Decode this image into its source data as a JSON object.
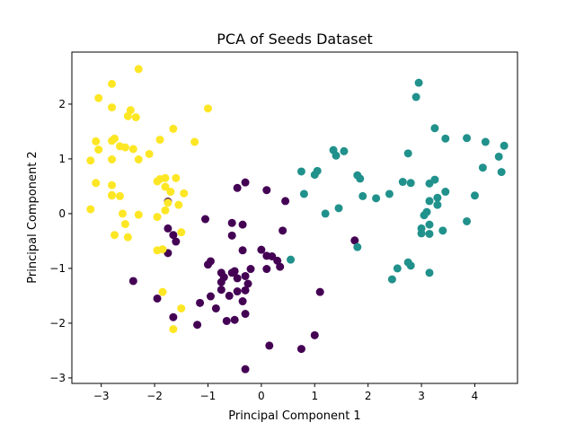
{
  "chart_data": {
    "type": "scatter",
    "title": "PCA of Seeds Dataset",
    "xlabel": "Principal Component 1",
    "ylabel": "Principal Component 2",
    "xlim": [
      -3.55,
      4.8
    ],
    "ylim": [
      -3.1,
      2.95
    ],
    "xticks": [
      -3,
      -2,
      -1,
      0,
      1,
      2,
      3,
      4
    ],
    "yticks": [
      -3,
      -2,
      -1,
      0,
      1,
      2
    ],
    "grid": false,
    "legend": "none",
    "colors": {
      "class_0": "#440154",
      "class_1": "#21918c",
      "class_2": "#fde725"
    },
    "series": [
      {
        "color_key": "class_0",
        "points": [
          [
            -1.75,
            0.22
          ],
          [
            -1.75,
            -0.27
          ],
          [
            -1.65,
            -0.39
          ],
          [
            -1.6,
            -0.51
          ],
          [
            -1.75,
            -0.72
          ],
          [
            -0.45,
            0.47
          ],
          [
            -0.3,
            0.57
          ],
          [
            0.1,
            0.43
          ],
          [
            0.45,
            0.23
          ],
          [
            -1.05,
            -0.1
          ],
          [
            -0.55,
            -0.17
          ],
          [
            -0.35,
            -0.2
          ],
          [
            -0.55,
            -0.4
          ],
          [
            -0.35,
            -0.67
          ],
          [
            0.0,
            -0.66
          ],
          [
            0.4,
            -0.31
          ],
          [
            0.1,
            -0.77
          ],
          [
            0.2,
            -0.78
          ],
          [
            -0.95,
            -0.87
          ],
          [
            -1.0,
            -0.93
          ],
          [
            -0.75,
            -1.08
          ],
          [
            -0.5,
            -1.05
          ],
          [
            -0.55,
            -1.08
          ],
          [
            -0.45,
            -1.18
          ],
          [
            -0.3,
            -1.14
          ],
          [
            -0.2,
            -1.01
          ],
          [
            0.1,
            -1.01
          ],
          [
            0.3,
            -0.86
          ],
          [
            0.35,
            -0.97
          ],
          [
            -0.7,
            -1.16
          ],
          [
            -0.75,
            -1.25
          ],
          [
            -0.75,
            -1.39
          ],
          [
            -0.45,
            -1.42
          ],
          [
            -0.3,
            -1.4
          ],
          [
            -0.25,
            -1.28
          ],
          [
            -0.95,
            -1.51
          ],
          [
            -0.35,
            -1.6
          ],
          [
            -0.6,
            -1.5
          ],
          [
            -0.85,
            -1.73
          ],
          [
            -0.5,
            -1.94
          ],
          [
            -0.65,
            -1.96
          ],
          [
            -0.3,
            -1.83
          ],
          [
            -1.15,
            -1.63
          ],
          [
            -1.95,
            -1.55
          ],
          [
            -1.65,
            -1.89
          ],
          [
            -1.2,
            -2.03
          ],
          [
            -2.4,
            -1.23
          ],
          [
            0.15,
            -2.41
          ],
          [
            0.75,
            -2.47
          ],
          [
            1.0,
            -2.22
          ],
          [
            -0.3,
            -2.84
          ],
          [
            1.1,
            -1.43
          ],
          [
            1.75,
            -0.49
          ]
        ]
      },
      {
        "color_key": "class_1",
        "points": [
          [
            2.95,
            2.39
          ],
          [
            2.9,
            2.13
          ],
          [
            3.25,
            1.56
          ],
          [
            3.45,
            1.37
          ],
          [
            3.85,
            1.38
          ],
          [
            4.2,
            1.31
          ],
          [
            4.55,
            1.24
          ],
          [
            4.45,
            1.04
          ],
          [
            4.15,
            0.84
          ],
          [
            4.5,
            0.76
          ],
          [
            1.35,
            1.16
          ],
          [
            1.4,
            1.06
          ],
          [
            1.55,
            1.14
          ],
          [
            2.75,
            1.1
          ],
          [
            0.75,
            0.77
          ],
          [
            1.0,
            0.71
          ],
          [
            1.05,
            0.78
          ],
          [
            1.8,
            0.7
          ],
          [
            1.85,
            0.64
          ],
          [
            2.65,
            0.58
          ],
          [
            2.8,
            0.56
          ],
          [
            3.15,
            0.55
          ],
          [
            3.25,
            0.62
          ],
          [
            0.8,
            0.36
          ],
          [
            1.45,
            0.1
          ],
          [
            1.2,
            0.0
          ],
          [
            1.9,
            0.32
          ],
          [
            2.15,
            0.28
          ],
          [
            2.4,
            0.36
          ],
          [
            3.15,
            0.23
          ],
          [
            3.3,
            0.29
          ],
          [
            3.45,
            0.4
          ],
          [
            3.3,
            0.16
          ],
          [
            4.0,
            0.33
          ],
          [
            3.1,
            0.03
          ],
          [
            3.05,
            -0.03
          ],
          [
            3.15,
            -0.2
          ],
          [
            3.0,
            -0.27
          ],
          [
            3.0,
            -0.36
          ],
          [
            3.15,
            -0.37
          ],
          [
            3.4,
            -0.31
          ],
          [
            3.85,
            -0.14
          ],
          [
            1.8,
            -0.61
          ],
          [
            0.55,
            -0.84
          ],
          [
            2.75,
            -0.89
          ],
          [
            2.8,
            -0.95
          ],
          [
            2.55,
            -1.0
          ],
          [
            3.15,
            -1.08
          ],
          [
            2.45,
            -1.2
          ]
        ]
      },
      {
        "color_key": "class_2",
        "points": [
          [
            -2.3,
            2.64
          ],
          [
            -2.8,
            2.37
          ],
          [
            -3.05,
            2.11
          ],
          [
            -2.8,
            1.94
          ],
          [
            -2.45,
            1.89
          ],
          [
            -2.5,
            1.78
          ],
          [
            -2.35,
            1.76
          ],
          [
            -1.65,
            1.55
          ],
          [
            -1.0,
            1.92
          ],
          [
            -3.1,
            1.32
          ],
          [
            -2.8,
            1.33
          ],
          [
            -2.75,
            1.37
          ],
          [
            -2.65,
            1.23
          ],
          [
            -2.55,
            1.21
          ],
          [
            -2.4,
            1.18
          ],
          [
            -1.9,
            1.35
          ],
          [
            -1.25,
            1.31
          ],
          [
            -3.05,
            1.17
          ],
          [
            -3.2,
            0.97
          ],
          [
            -2.8,
            0.99
          ],
          [
            -2.3,
            0.99
          ],
          [
            -2.1,
            1.09
          ],
          [
            -1.9,
            0.63
          ],
          [
            -1.8,
            0.65
          ],
          [
            -1.95,
            0.59
          ],
          [
            -1.6,
            0.65
          ],
          [
            -2.8,
            0.52
          ],
          [
            -3.1,
            0.56
          ],
          [
            -1.8,
            0.49
          ],
          [
            -1.7,
            0.4
          ],
          [
            -1.45,
            0.37
          ],
          [
            -2.8,
            0.33
          ],
          [
            -2.65,
            0.32
          ],
          [
            -2.8,
            0.34
          ],
          [
            -1.75,
            0.2
          ],
          [
            -1.55,
            0.16
          ],
          [
            -1.8,
            0.06
          ],
          [
            -2.6,
            0.0
          ],
          [
            -2.3,
            -0.02
          ],
          [
            -1.95,
            -0.06
          ],
          [
            -3.2,
            0.08
          ],
          [
            -2.55,
            -0.19
          ],
          [
            -2.75,
            -0.39
          ],
          [
            -2.5,
            -0.43
          ],
          [
            -1.5,
            -0.34
          ],
          [
            -1.85,
            -0.65
          ],
          [
            -1.95,
            -0.67
          ],
          [
            -1.85,
            -1.43
          ],
          [
            -1.5,
            -1.73
          ],
          [
            -1.65,
            -2.11
          ]
        ]
      }
    ]
  }
}
